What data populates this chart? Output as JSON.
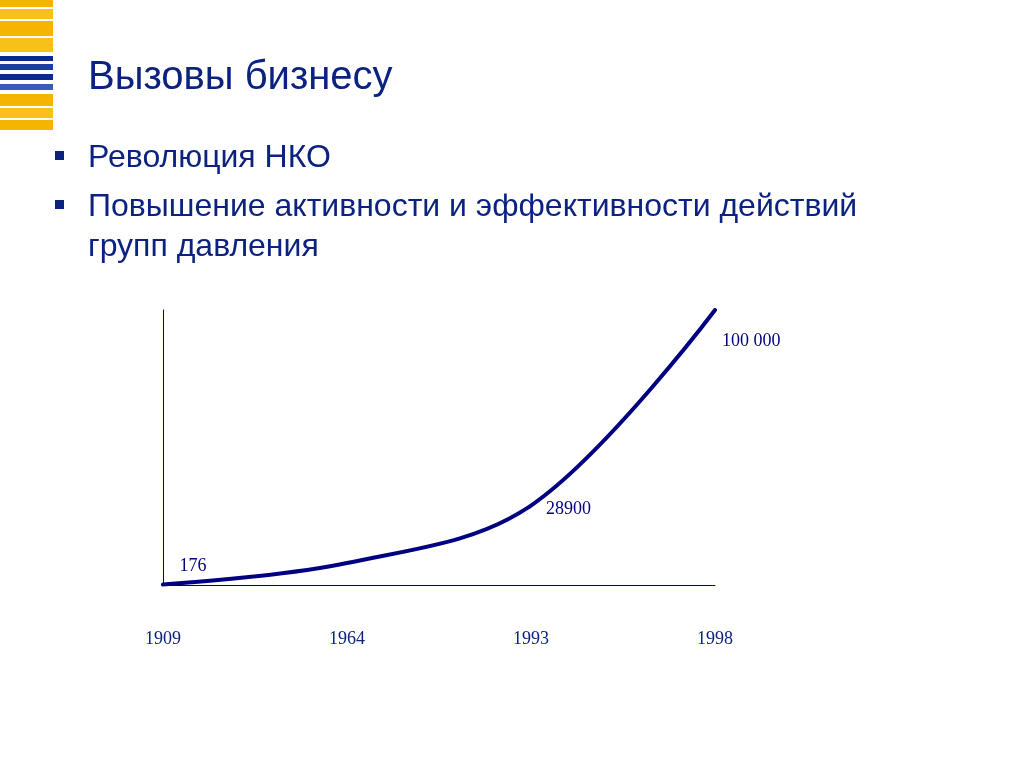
{
  "chart_data": {
    "type": "line",
    "title": "Вызовы бизнесу",
    "annotations": [
      "Революция НКО",
      "Повышение активности и эффективности действий групп давления"
    ],
    "categories": [
      "1909",
      "1964",
      "1993",
      "1998"
    ],
    "series": [
      {
        "color": "#000080",
        "values": [
          176,
          8000,
          28900,
          100000
        ],
        "value_labels": [
          "176",
          null,
          "28900",
          "100 000"
        ]
      }
    ],
    "ylim": [
      0,
      100000
    ],
    "tick_labels": "x",
    "marker": "none",
    "line_style": "solid"
  }
}
